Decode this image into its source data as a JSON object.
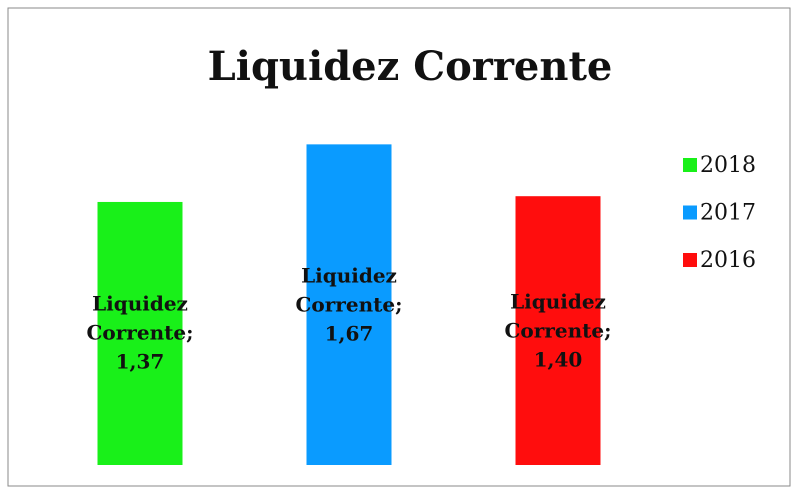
{
  "chart_data": {
    "type": "bar",
    "title": "Liquidez Corrente",
    "categories": [
      "Liquidez Corrente"
    ],
    "series": [
      {
        "name": "2018",
        "color": "#19f019",
        "values": [
          1.37
        ],
        "value_labels": [
          "Liquidez Corrente; 1,37"
        ]
      },
      {
        "name": "2017",
        "color": "#0a9bff",
        "values": [
          1.67
        ],
        "value_labels": [
          "Liquidez Corrente; 1,67"
        ]
      },
      {
        "name": "2016",
        "color": "#ff0d0d",
        "values": [
          1.4
        ],
        "value_labels": [
          "Liquidez Corrente; 1,40"
        ]
      }
    ],
    "ylim": [
      0,
      2
    ],
    "legend": "right"
  }
}
